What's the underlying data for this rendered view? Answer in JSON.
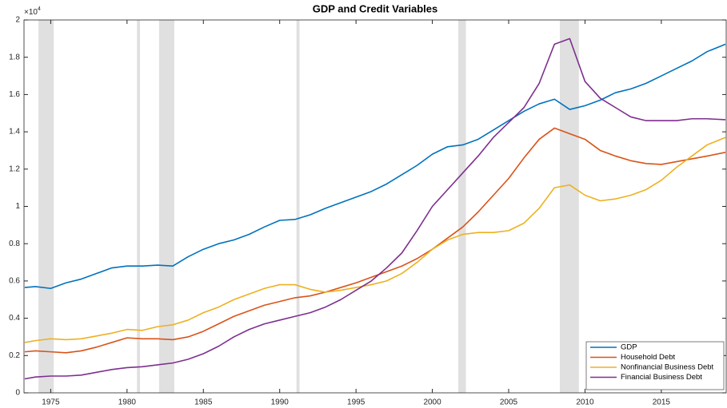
{
  "chart_data": {
    "type": "line",
    "title": "GDP and Credit Variables",
    "y_exponent_base": "×10",
    "y_exponent": "4",
    "x": [
      1973.3,
      1974,
      1975,
      1976,
      1977,
      1978,
      1979,
      1980,
      1981,
      1982,
      1983,
      1984,
      1985,
      1986,
      1987,
      1988,
      1989,
      1990,
      1991,
      1992,
      1993,
      1994,
      1995,
      1996,
      1997,
      1998,
      1999,
      2000,
      2001,
      2002,
      2003,
      2004,
      2005,
      2006,
      2007,
      2008,
      2009,
      2010,
      2011,
      2012,
      2013,
      2014,
      2015,
      2016,
      2017,
      2018,
      2019.2
    ],
    "series": [
      {
        "name": "GDP",
        "color": "#0072bd",
        "values": [
          0.565,
          0.57,
          0.56,
          0.59,
          0.61,
          0.64,
          0.67,
          0.68,
          0.68,
          0.685,
          0.68,
          0.73,
          0.77,
          0.8,
          0.82,
          0.85,
          0.89,
          0.925,
          0.93,
          0.955,
          0.99,
          1.02,
          1.05,
          1.08,
          1.12,
          1.17,
          1.22,
          1.28,
          1.32,
          1.33,
          1.36,
          1.41,
          1.46,
          1.51,
          1.55,
          1.575,
          1.52,
          1.54,
          1.57,
          1.61,
          1.63,
          1.66,
          1.7,
          1.74,
          1.78,
          1.83,
          1.87
        ]
      },
      {
        "name": "Household Debt",
        "color": "#d95319",
        "values": [
          0.22,
          0.225,
          0.22,
          0.215,
          0.225,
          0.245,
          0.27,
          0.295,
          0.29,
          0.29,
          0.285,
          0.3,
          0.33,
          0.37,
          0.41,
          0.44,
          0.47,
          0.49,
          0.51,
          0.52,
          0.54,
          0.565,
          0.59,
          0.62,
          0.65,
          0.68,
          0.72,
          0.77,
          0.83,
          0.89,
          0.97,
          1.06,
          1.15,
          1.26,
          1.36,
          1.42,
          1.39,
          1.36,
          1.3,
          1.27,
          1.245,
          1.23,
          1.225,
          1.24,
          1.255,
          1.27,
          1.29
        ]
      },
      {
        "name": "Nonfinancial Business Debt",
        "color": "#edb120",
        "values": [
          0.27,
          0.28,
          0.29,
          0.285,
          0.29,
          0.305,
          0.32,
          0.34,
          0.335,
          0.355,
          0.365,
          0.39,
          0.43,
          0.46,
          0.5,
          0.53,
          0.56,
          0.58,
          0.58,
          0.555,
          0.54,
          0.55,
          0.565,
          0.58,
          0.6,
          0.64,
          0.7,
          0.77,
          0.82,
          0.85,
          0.86,
          0.86,
          0.87,
          0.91,
          0.99,
          1.1,
          1.115,
          1.06,
          1.03,
          1.04,
          1.06,
          1.09,
          1.14,
          1.21,
          1.27,
          1.33,
          1.37
        ]
      },
      {
        "name": "Financial Business Debt",
        "color": "#7e2f8e",
        "values": [
          0.075,
          0.085,
          0.09,
          0.09,
          0.095,
          0.11,
          0.125,
          0.135,
          0.14,
          0.15,
          0.16,
          0.18,
          0.21,
          0.25,
          0.3,
          0.34,
          0.37,
          0.39,
          0.41,
          0.43,
          0.46,
          0.5,
          0.55,
          0.6,
          0.67,
          0.75,
          0.87,
          1.0,
          1.09,
          1.18,
          1.27,
          1.37,
          1.45,
          1.53,
          1.66,
          1.87,
          1.9,
          1.67,
          1.58,
          1.53,
          1.48,
          1.46,
          1.46,
          1.46,
          1.47,
          1.47,
          1.465
        ]
      }
    ],
    "shaded_periods": [
      [
        1974.2,
        1975.2
      ],
      [
        1980.65,
        1980.85
      ],
      [
        1982.1,
        1983.1
      ],
      [
        1991.1,
        1991.3
      ],
      [
        2001.7,
        2002.2
      ],
      [
        2008.35,
        2009.6
      ]
    ],
    "shade_color": "#e0e0e0",
    "xlim": [
      1973.25,
      2019.25
    ],
    "xticks": [
      1975,
      1980,
      1985,
      1990,
      1995,
      2000,
      2005,
      2010,
      2015
    ],
    "ylim": [
      0,
      2
    ],
    "yticks": [
      0,
      0.2,
      0.4,
      0.6,
      0.8,
      1,
      1.2,
      1.4,
      1.6,
      1.8,
      2
    ],
    "legend": "lower right"
  }
}
